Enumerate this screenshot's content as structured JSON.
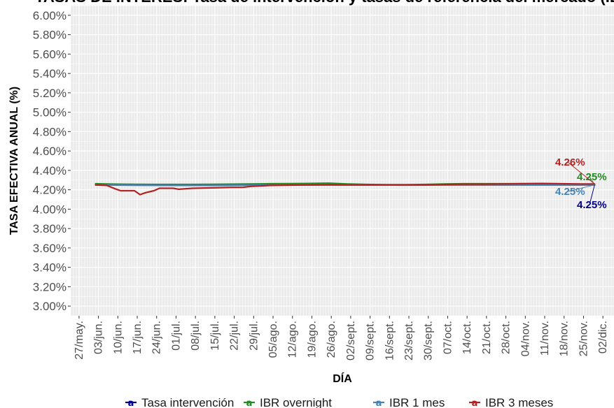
{
  "chart_data": {
    "type": "line",
    "title": "TASAS DE INTERÉS: Tasa de intervención y tasas de referencia del mercado (IBR)",
    "xlabel": "DÍA",
    "ylabel": "TASA EFECTIVA ANUAL (%)",
    "ylim": [
      2.9,
      6.1
    ],
    "x_range": [
      "2025-05-24",
      "2025-12-06"
    ],
    "y_ticks": [
      "3.00%",
      "3.20%",
      "3.40%",
      "3.60%",
      "3.80%",
      "4.00%",
      "4.20%",
      "4.40%",
      "4.60%",
      "4.80%",
      "5.00%",
      "5.20%",
      "5.40%",
      "5.60%",
      "5.80%",
      "6.00%"
    ],
    "x_ticks": [
      {
        "date": "2025-05-27",
        "label": "27/may."
      },
      {
        "date": "2025-06-03",
        "label": "03/jun."
      },
      {
        "date": "2025-06-10",
        "label": "10/jun."
      },
      {
        "date": "2025-06-17",
        "label": "17/jun."
      },
      {
        "date": "2025-06-24",
        "label": "24/jun."
      },
      {
        "date": "2025-07-01",
        "label": "01/jul."
      },
      {
        "date": "2025-07-08",
        "label": "08/jul."
      },
      {
        "date": "2025-07-15",
        "label": "15/jul."
      },
      {
        "date": "2025-07-22",
        "label": "22/jul."
      },
      {
        "date": "2025-07-29",
        "label": "29/jul."
      },
      {
        "date": "2025-08-05",
        "label": "05/ago."
      },
      {
        "date": "2025-08-12",
        "label": "12/ago."
      },
      {
        "date": "2025-08-19",
        "label": "19/ago."
      },
      {
        "date": "2025-08-26",
        "label": "26/ago."
      },
      {
        "date": "2025-09-02",
        "label": "02/sept."
      },
      {
        "date": "2025-09-09",
        "label": "09/sept."
      },
      {
        "date": "2025-09-16",
        "label": "16/sept."
      },
      {
        "date": "2025-09-23",
        "label": "23/sept."
      },
      {
        "date": "2025-09-30",
        "label": "30/sept."
      },
      {
        "date": "2025-10-07",
        "label": "07/oct."
      },
      {
        "date": "2025-10-14",
        "label": "14/oct."
      },
      {
        "date": "2025-10-21",
        "label": "21/oct."
      },
      {
        "date": "2025-10-28",
        "label": "28/oct."
      },
      {
        "date": "2025-11-04",
        "label": "04/nov."
      },
      {
        "date": "2025-11-11",
        "label": "11/nov."
      },
      {
        "date": "2025-11-18",
        "label": "18/nov."
      },
      {
        "date": "2025-11-25",
        "label": "25/nov."
      },
      {
        "date": "2025-12-02",
        "label": "02/dic."
      }
    ],
    "grid": true,
    "legend_position": "bottom",
    "series": [
      {
        "name": "Tasa intervención",
        "color": "#00008B",
        "end_label": "4.25%",
        "points": [
          {
            "x": "2025-06-02",
            "y": 4.25
          },
          {
            "x": "2025-11-29",
            "y": 4.25
          }
        ]
      },
      {
        "name": "IBR overnight",
        "color": "#228B22",
        "end_label": "4.25%",
        "points": [
          {
            "x": "2025-06-02",
            "y": 4.262
          },
          {
            "x": "2025-06-09",
            "y": 4.258
          },
          {
            "x": "2025-06-16",
            "y": 4.256
          },
          {
            "x": "2025-06-23",
            "y": 4.255
          },
          {
            "x": "2025-06-30",
            "y": 4.255
          },
          {
            "x": "2025-07-07",
            "y": 4.255
          },
          {
            "x": "2025-07-14",
            "y": 4.256
          },
          {
            "x": "2025-07-21",
            "y": 4.258
          },
          {
            "x": "2025-07-28",
            "y": 4.26
          },
          {
            "x": "2025-08-04",
            "y": 4.262
          },
          {
            "x": "2025-08-11",
            "y": 4.263
          },
          {
            "x": "2025-08-18",
            "y": 4.265
          },
          {
            "x": "2025-08-25",
            "y": 4.268
          },
          {
            "x": "2025-09-01",
            "y": 4.26
          },
          {
            "x": "2025-09-08",
            "y": 4.255
          },
          {
            "x": "2025-09-15",
            "y": 4.252
          },
          {
            "x": "2025-09-22",
            "y": 4.252
          },
          {
            "x": "2025-09-29",
            "y": 4.255
          },
          {
            "x": "2025-10-06",
            "y": 4.26
          },
          {
            "x": "2025-10-13",
            "y": 4.262
          },
          {
            "x": "2025-10-20",
            "y": 4.262
          },
          {
            "x": "2025-10-27",
            "y": 4.262
          },
          {
            "x": "2025-11-03",
            "y": 4.263
          },
          {
            "x": "2025-11-10",
            "y": 4.262
          },
          {
            "x": "2025-11-17",
            "y": 4.258
          },
          {
            "x": "2025-11-24",
            "y": 4.255
          },
          {
            "x": "2025-11-29",
            "y": 4.252
          }
        ]
      },
      {
        "name": "IBR 1 mes",
        "color": "#4682B4",
        "end_label": "4.25%",
        "points": [
          {
            "x": "2025-06-02",
            "y": 4.25
          },
          {
            "x": "2025-06-16",
            "y": 4.247
          },
          {
            "x": "2025-06-30",
            "y": 4.245
          },
          {
            "x": "2025-07-14",
            "y": 4.245
          },
          {
            "x": "2025-07-28",
            "y": 4.247
          },
          {
            "x": "2025-08-11",
            "y": 4.25
          },
          {
            "x": "2025-08-25",
            "y": 4.252
          },
          {
            "x": "2025-09-08",
            "y": 4.25
          },
          {
            "x": "2025-09-22",
            "y": 4.248
          },
          {
            "x": "2025-10-06",
            "y": 4.249
          },
          {
            "x": "2025-10-20",
            "y": 4.25
          },
          {
            "x": "2025-11-03",
            "y": 4.25
          },
          {
            "x": "2025-11-17",
            "y": 4.25
          },
          {
            "x": "2025-11-29",
            "y": 4.25
          }
        ]
      },
      {
        "name": "IBR 3 meses",
        "color": "#B22222",
        "end_label": "4.26%",
        "points": [
          {
            "x": "2025-06-02",
            "y": 4.25
          },
          {
            "x": "2025-06-06",
            "y": 4.245
          },
          {
            "x": "2025-06-09",
            "y": 4.21
          },
          {
            "x": "2025-06-11",
            "y": 4.19
          },
          {
            "x": "2025-06-16",
            "y": 4.19
          },
          {
            "x": "2025-06-18",
            "y": 4.15
          },
          {
            "x": "2025-06-20",
            "y": 4.17
          },
          {
            "x": "2025-06-23",
            "y": 4.19
          },
          {
            "x": "2025-06-25",
            "y": 4.215
          },
          {
            "x": "2025-06-30",
            "y": 4.215
          },
          {
            "x": "2025-07-02",
            "y": 4.205
          },
          {
            "x": "2025-07-07",
            "y": 4.215
          },
          {
            "x": "2025-07-14",
            "y": 4.22
          },
          {
            "x": "2025-07-21",
            "y": 4.225
          },
          {
            "x": "2025-07-25",
            "y": 4.225
          },
          {
            "x": "2025-07-28",
            "y": 4.235
          },
          {
            "x": "2025-08-04",
            "y": 4.245
          },
          {
            "x": "2025-08-11",
            "y": 4.248
          },
          {
            "x": "2025-08-18",
            "y": 4.25
          },
          {
            "x": "2025-08-25",
            "y": 4.252
          },
          {
            "x": "2025-09-01",
            "y": 4.25
          },
          {
            "x": "2025-09-08",
            "y": 4.25
          },
          {
            "x": "2025-09-15",
            "y": 4.25
          },
          {
            "x": "2025-09-22",
            "y": 4.25
          },
          {
            "x": "2025-09-29",
            "y": 4.25
          },
          {
            "x": "2025-10-06",
            "y": 4.255
          },
          {
            "x": "2025-10-13",
            "y": 4.258
          },
          {
            "x": "2025-10-20",
            "y": 4.258
          },
          {
            "x": "2025-10-27",
            "y": 4.26
          },
          {
            "x": "2025-11-03",
            "y": 4.262
          },
          {
            "x": "2025-11-10",
            "y": 4.265
          },
          {
            "x": "2025-11-17",
            "y": 4.262
          },
          {
            "x": "2025-11-24",
            "y": 4.26
          },
          {
            "x": "2025-11-29",
            "y": 4.26
          }
        ]
      }
    ]
  }
}
